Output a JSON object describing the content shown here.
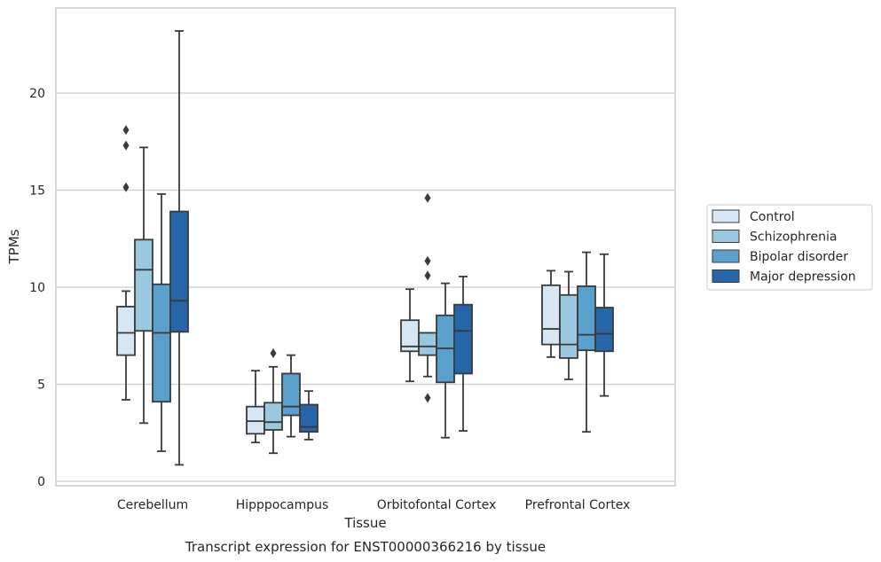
{
  "caption": "Transcript expression for ENST00000366216 by tissue",
  "chart_data": {
    "type": "box",
    "xlabel": "Tissue",
    "ylabel": "TPMs",
    "categories": [
      "Cerebellum",
      "Hipppocampus",
      "Orbitofontal Cortex",
      "Prefrontal Cortex"
    ],
    "yticks": [
      "0",
      "5",
      "10",
      "15",
      "20"
    ],
    "ylim": [
      -0.3,
      24.2
    ],
    "grid": "horizontal",
    "legend_position": "right",
    "series": [
      {
        "name": "Control",
        "color": "#d6e6f4",
        "boxes": [
          {
            "whisker_low": 4.2,
            "q1": 6.5,
            "median": 7.65,
            "q3": 9.0,
            "whisker_high": 9.8,
            "outliers": [
              18.1,
              17.3,
              15.15
            ]
          },
          {
            "whisker_low": 2.0,
            "q1": 2.45,
            "median": 3.1,
            "q3": 3.85,
            "whisker_high": 5.7,
            "outliers": []
          },
          {
            "whisker_low": 5.15,
            "q1": 6.7,
            "median": 6.95,
            "q3": 8.3,
            "whisker_high": 9.9,
            "outliers": []
          },
          {
            "whisker_low": 6.4,
            "q1": 7.05,
            "median": 7.85,
            "q3": 10.1,
            "whisker_high": 10.85,
            "outliers": []
          }
        ]
      },
      {
        "name": "Schizophrenia",
        "color": "#9ac8e0",
        "boxes": [
          {
            "whisker_low": 3.0,
            "q1": 7.75,
            "median": 10.9,
            "q3": 12.45,
            "whisker_high": 17.2,
            "outliers": []
          },
          {
            "whisker_low": 1.45,
            "q1": 2.65,
            "median": 3.05,
            "q3": 4.05,
            "whisker_high": 5.9,
            "outliers": [
              6.6
            ]
          },
          {
            "whisker_low": 5.4,
            "q1": 6.5,
            "median": 6.95,
            "q3": 7.65,
            "whisker_high": 7.65,
            "outliers": [
              14.6,
              11.35,
              10.6,
              4.3
            ]
          },
          {
            "whisker_low": 5.25,
            "q1": 6.35,
            "median": 7.05,
            "q3": 9.6,
            "whisker_high": 10.8,
            "outliers": []
          }
        ]
      },
      {
        "name": "Bipolar disorder",
        "color": "#5b9fcb",
        "boxes": [
          {
            "whisker_low": 1.55,
            "q1": 4.1,
            "median": 7.65,
            "q3": 10.15,
            "whisker_high": 14.8,
            "outliers": []
          },
          {
            "whisker_low": 2.3,
            "q1": 3.4,
            "median": 3.85,
            "q3": 5.55,
            "whisker_high": 6.5,
            "outliers": []
          },
          {
            "whisker_low": 2.25,
            "q1": 5.1,
            "median": 6.85,
            "q3": 8.55,
            "whisker_high": 10.2,
            "outliers": []
          },
          {
            "whisker_low": 2.55,
            "q1": 6.75,
            "median": 7.55,
            "q3": 10.05,
            "whisker_high": 11.8,
            "outliers": []
          }
        ]
      },
      {
        "name": "Major depression",
        "color": "#2565a8",
        "boxes": [
          {
            "whisker_low": 0.85,
            "q1": 7.7,
            "median": 9.3,
            "q3": 13.9,
            "whisker_high": 23.2,
            "outliers": []
          },
          {
            "whisker_low": 2.15,
            "q1": 2.55,
            "median": 2.8,
            "q3": 3.95,
            "whisker_high": 4.65,
            "outliers": []
          },
          {
            "whisker_low": 2.6,
            "q1": 5.55,
            "median": 7.75,
            "q3": 9.1,
            "whisker_high": 10.55,
            "outliers": []
          },
          {
            "whisker_low": 4.4,
            "q1": 6.7,
            "median": 7.6,
            "q3": 8.95,
            "whisker_high": 11.7,
            "outliers": []
          }
        ]
      }
    ]
  }
}
